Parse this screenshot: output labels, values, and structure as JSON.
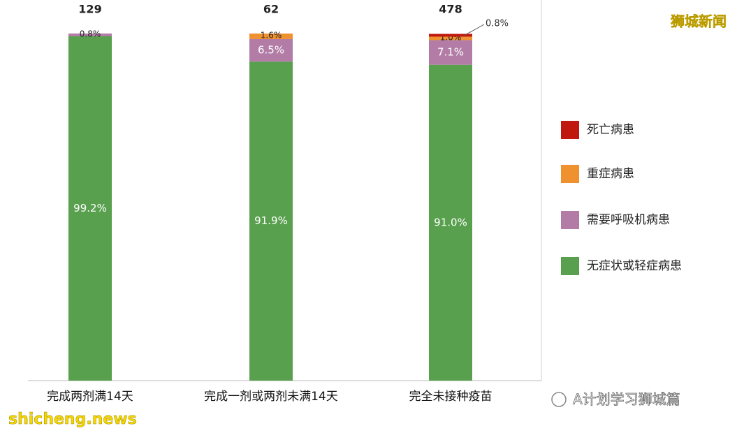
{
  "chart_data": {
    "type": "stacked_bar_100",
    "categories": [
      "完成两剂满14天",
      "完成一剂或两剂未满14天",
      "完全未接种疫苗"
    ],
    "totals": [
      "129",
      "62",
      "478"
    ],
    "series": [
      {
        "name": "死亡病患",
        "color": "#c0170f",
        "values": [
          0,
          0,
          0.8
        ],
        "value_labels": [
          null,
          null,
          "0.8%"
        ]
      },
      {
        "name": "重症病患",
        "color": "#f0912f",
        "values": [
          0,
          1.6,
          1.0
        ],
        "value_labels": [
          null,
          "1.6%",
          "1.0%"
        ]
      },
      {
        "name": "需要呼吸机病患",
        "color": "#b27ca6",
        "values": [
          0.8,
          6.5,
          7.1
        ],
        "value_labels": [
          "0.8%",
          "6.5%",
          "7.1%"
        ]
      },
      {
        "name": "无症状或轻症病患",
        "color": "#58a04e",
        "values": [
          99.2,
          91.9,
          91.0
        ],
        "value_labels": [
          "99.2%",
          "91.9%",
          "91.0%"
        ]
      }
    ],
    "ylim": [
      0,
      100
    ],
    "legend": "right"
  },
  "watermarks": {
    "top_right": "狮城新闻",
    "bottom_left": "shicheng.news",
    "bottom_right": "A计划学习狮城篇"
  }
}
